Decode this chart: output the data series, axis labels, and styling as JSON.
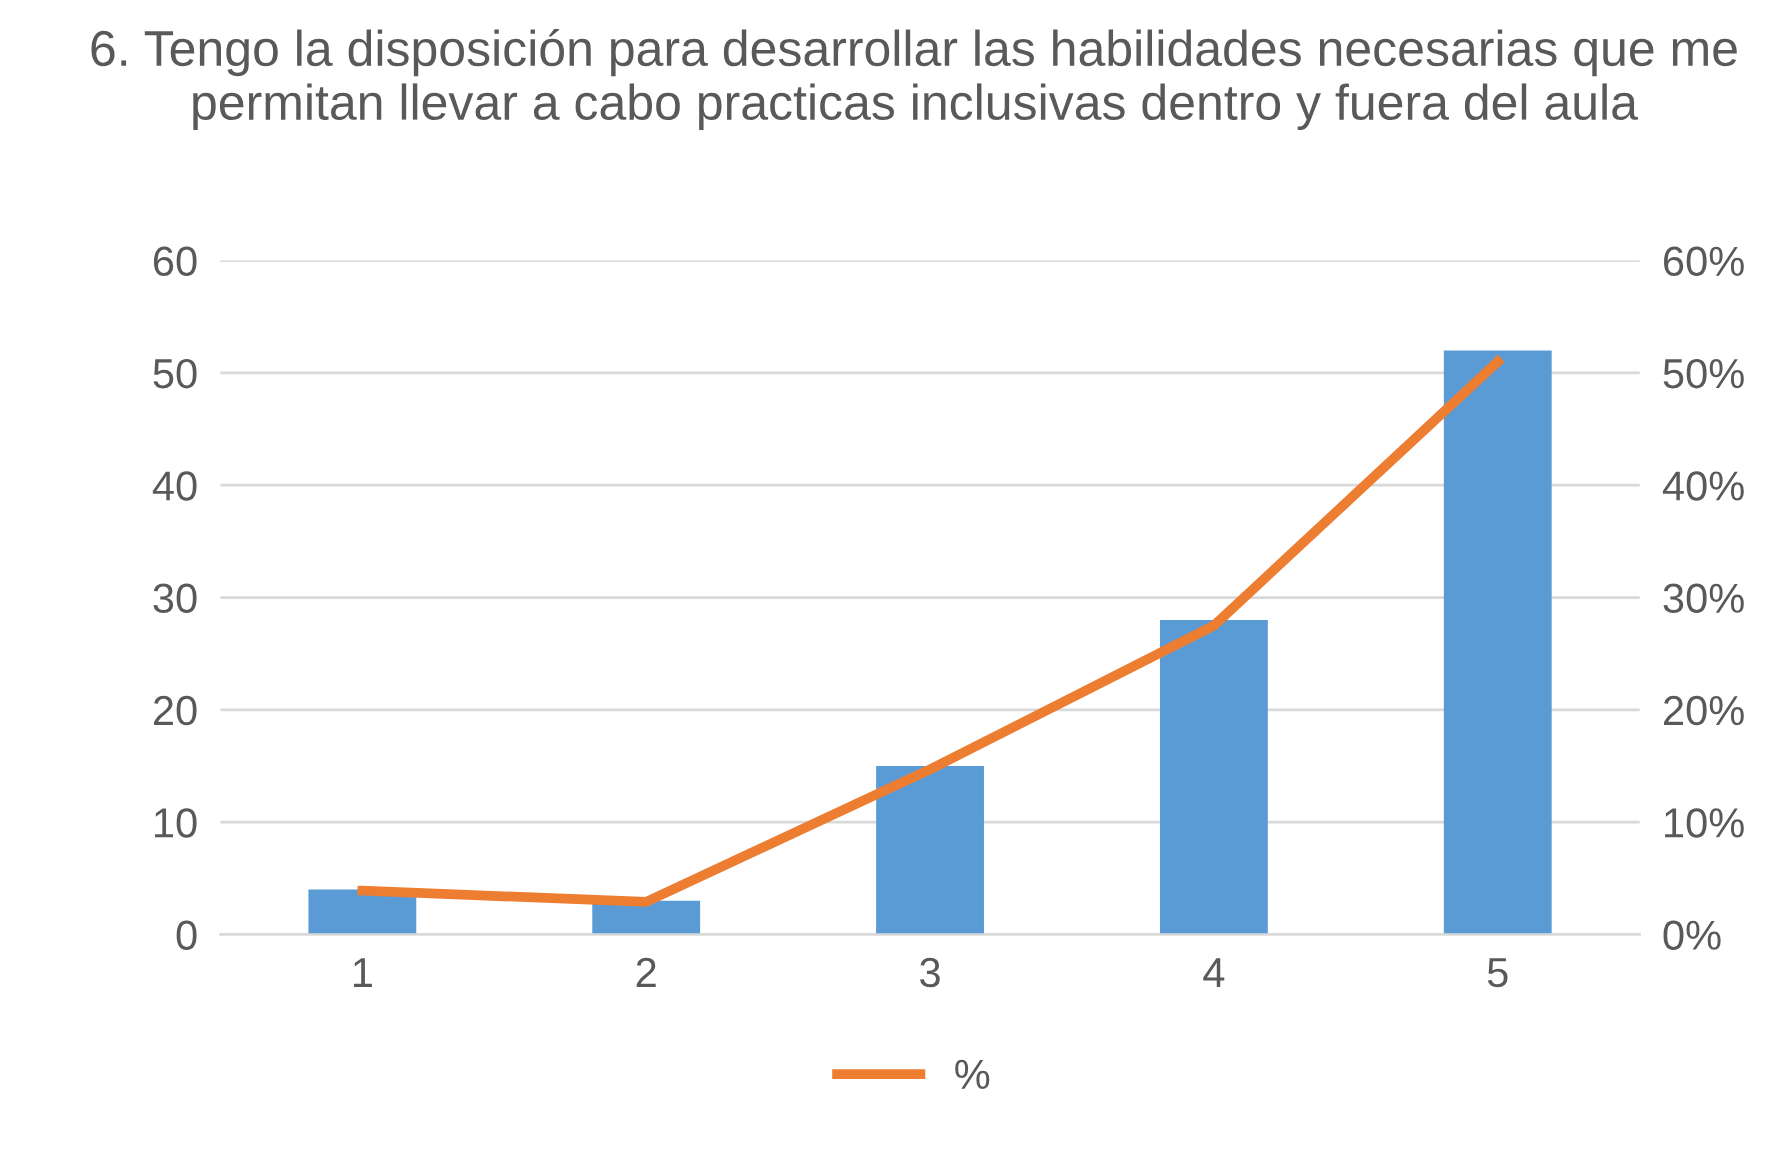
{
  "chart_data": {
    "type": "bar",
    "title": "6. Tengo la disposición para desarrollar las habilidades necesarias que me permitan llevar a cabo practicas inclusivas dentro y fuera del aula",
    "categories": [
      "1",
      "2",
      "3",
      "4",
      "5"
    ],
    "series": [
      {
        "color": "#5b9bd5",
        "values": [
          4,
          3,
          15,
          28,
          52
        ]
      },
      {
        "type": "line",
        "name": "%",
        "color": "#ed7d31",
        "axis": "y2",
        "values": [
          3.9,
          2.9,
          14.7,
          27.5,
          51.0
        ]
      }
    ],
    "ylim": [
      0,
      60
    ],
    "yticks": [
      0,
      10,
      20,
      30,
      40,
      50,
      60
    ],
    "y2lim": [
      0,
      60
    ],
    "y2ticks": [
      {
        "value": 0,
        "label": "0%"
      },
      {
        "value": 10,
        "label": "10%"
      },
      {
        "value": 20,
        "label": "20%"
      },
      {
        "value": 30,
        "label": "30%"
      },
      {
        "value": 40,
        "label": "40%"
      },
      {
        "value": 50,
        "label": "50%"
      },
      {
        "value": 60,
        "label": "60%"
      }
    ],
    "grid": "y",
    "legend": "bottom",
    "marker": "none",
    "line_style": "solid"
  }
}
